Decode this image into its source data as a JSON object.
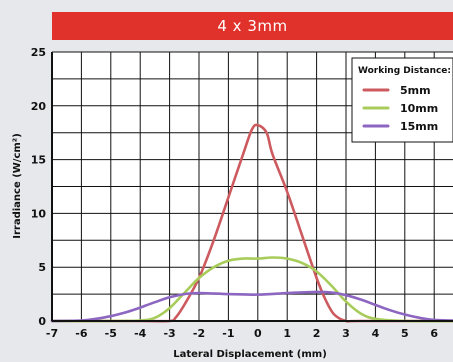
{
  "chart_data": {
    "type": "line",
    "title": "4 x 3mm",
    "xlabel": "Lateral Displacement (mm)",
    "ylabel": "Irradiance (W/cm²)",
    "xlim": [
      -7,
      7
    ],
    "ylim": [
      0,
      25
    ],
    "x_ticks": [
      -7,
      -6,
      -5,
      -4,
      -3,
      -2,
      -1,
      0,
      1,
      2,
      3,
      4,
      5,
      6
    ],
    "y_ticks": [
      0,
      5,
      10,
      15,
      20,
      25
    ],
    "grid": true,
    "legend": {
      "title": "Working Distance:",
      "position": "top-right"
    },
    "series": [
      {
        "name": "5mm",
        "color": "#cc5a5e",
        "x": [
          -7,
          -4,
          -3,
          -2.8,
          -2.5,
          -2,
          -1.5,
          -1,
          -0.5,
          -0.2,
          0,
          0.3,
          0.5,
          1,
          1.5,
          2,
          2.3,
          2.6,
          3,
          3.5,
          7
        ],
        "y": [
          0,
          0,
          0,
          0.3,
          1.5,
          4,
          7.5,
          11.5,
          15.5,
          17.8,
          18.2,
          17.5,
          15.5,
          12,
          8,
          4,
          2,
          0.6,
          0,
          0,
          0
        ]
      },
      {
        "name": "10mm",
        "color": "#a8cc5a",
        "x": [
          -7,
          -5,
          -4,
          -3.5,
          -3,
          -2.5,
          -2,
          -1.5,
          -1,
          -0.5,
          0,
          0.5,
          1,
          1.5,
          2,
          2.5,
          3,
          3.5,
          4,
          5,
          7
        ],
        "y": [
          0,
          0,
          0.05,
          0.3,
          1.2,
          2.6,
          4.0,
          5.0,
          5.6,
          5.8,
          5.8,
          5.9,
          5.8,
          5.4,
          4.6,
          3.3,
          1.8,
          0.7,
          0.2,
          0,
          0
        ]
      },
      {
        "name": "15mm",
        "color": "#8c66c0",
        "x": [
          -7,
          -6,
          -5.5,
          -5,
          -4.5,
          -4,
          -3.5,
          -3,
          -2.5,
          -2,
          -1,
          0,
          1,
          2,
          2.5,
          3,
          3.5,
          4,
          4.5,
          5,
          5.5,
          6,
          7
        ],
        "y": [
          0,
          0.05,
          0.2,
          0.45,
          0.8,
          1.25,
          1.75,
          2.2,
          2.5,
          2.6,
          2.5,
          2.45,
          2.6,
          2.7,
          2.65,
          2.4,
          2.0,
          1.5,
          1.0,
          0.6,
          0.3,
          0.1,
          0.02
        ]
      }
    ]
  }
}
